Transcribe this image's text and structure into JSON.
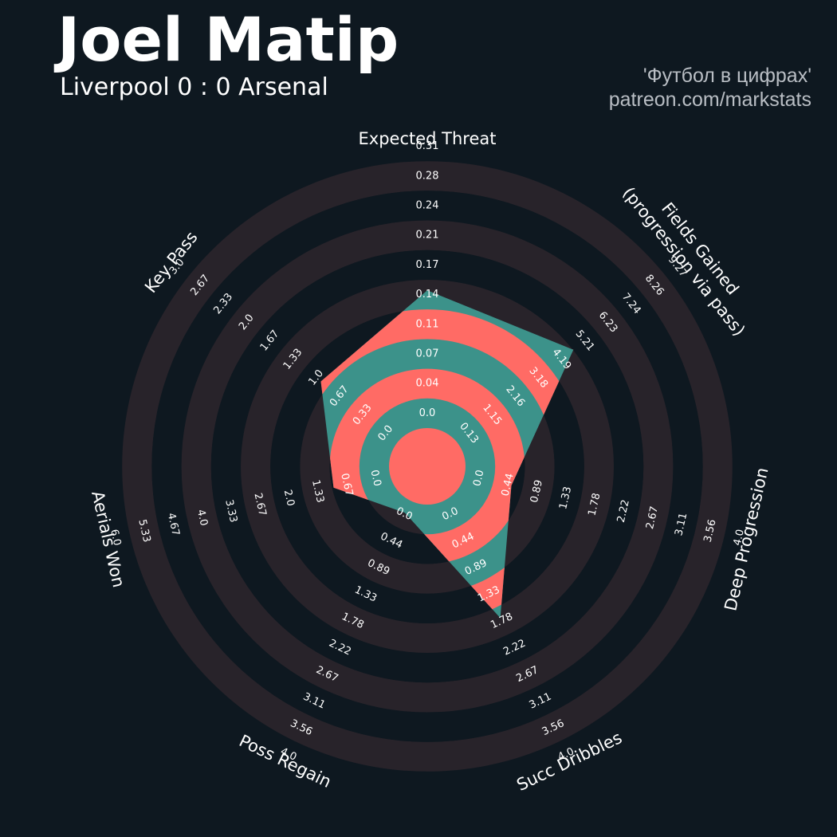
{
  "header": {
    "title": "Joel Matip",
    "subtitle": "Liverpool 0 : 0 Arsenal",
    "credit_line1": "'Футбол в цифрах'",
    "credit_line2": "patreon.com/markstats"
  },
  "colors": {
    "background": "#0e1820",
    "band_odd": "#28232a",
    "band_even": "#0e1820",
    "inner_fill": "#ff6b65",
    "radar_teal": "#3c928a",
    "radar_coral": "#ff6b65",
    "text": "#ffffff"
  },
  "chart_data": {
    "type": "radar",
    "params": [
      "Expected Threat",
      "Fields Gained\n(progression via pass)",
      "Deep Progression",
      "Succ Dribbles",
      "Poss Regain",
      "Aerials Won",
      "Key Pass"
    ],
    "ticks": [
      [
        "0.0",
        "0.04",
        "0.07",
        "0.11",
        "0.14",
        "0.17",
        "0.21",
        "0.24",
        "0.28",
        "0.31"
      ],
      [
        "0.13",
        "1.15",
        "2.16",
        "3.18",
        "4.19",
        "5.21",
        "6.23",
        "7.24",
        "8.26",
        "9.27"
      ],
      [
        "0.0",
        "0.44",
        "0.89",
        "1.33",
        "1.78",
        "2.22",
        "2.67",
        "3.11",
        "3.56",
        "4.0"
      ],
      [
        "0.0",
        "0.44",
        "0.89",
        "1.33",
        "1.78",
        "2.22",
        "2.67",
        "3.11",
        "3.56",
        "4.0"
      ],
      [
        "0.0",
        "0.44",
        "0.89",
        "1.33",
        "1.78",
        "2.22",
        "2.67",
        "3.11",
        "3.56",
        "4.0"
      ],
      [
        "0.0",
        "0.67",
        "1.33",
        "2.0",
        "2.67",
        "3.33",
        "4.0",
        "4.67",
        "5.33",
        "6.0"
      ],
      [
        "0.0",
        "0.33",
        "0.67",
        "1.0",
        "1.33",
        "1.67",
        "2.0",
        "2.33",
        "2.67",
        "3.0"
      ]
    ],
    "min": [
      0.0,
      0.13,
      0.0,
      0.0,
      0.0,
      0.0,
      0.0
    ],
    "max": [
      0.31,
      9.27,
      4.0,
      4.0,
      4.0,
      6.0,
      3.0
    ],
    "values": [
      0.16,
      5.22,
      0.72,
      1.95,
      0.2,
      1.3,
      1.1
    ]
  }
}
